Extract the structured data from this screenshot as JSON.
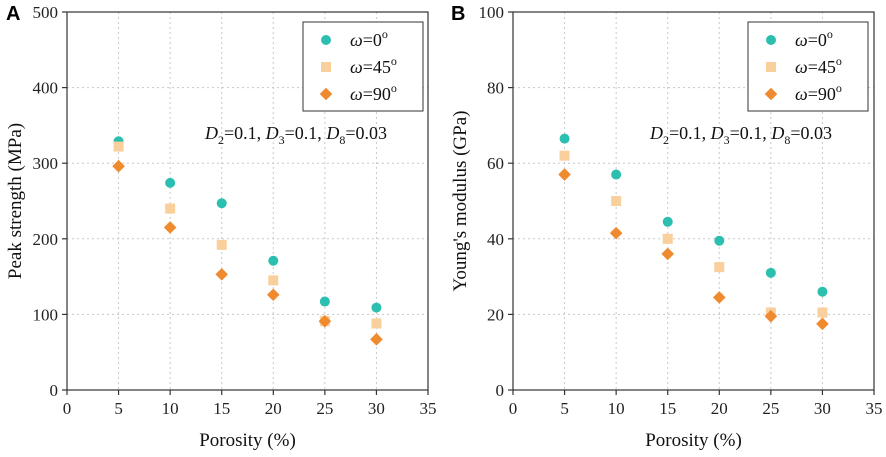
{
  "chart_data": [
    {
      "panel": "A",
      "type": "scatter",
      "xlabel": "Porosity (%)",
      "ylabel": "Peak strength (MPa)",
      "xlim": [
        0,
        35
      ],
      "ylim": [
        0,
        500
      ],
      "xticks": [
        0,
        5,
        10,
        15,
        20,
        25,
        30,
        35
      ],
      "yticks": [
        0,
        100,
        200,
        300,
        400,
        500
      ],
      "grid": true,
      "legend_position": "top-right",
      "annotation": {
        "parts": [
          "D",
          "2",
          "=0.1, ",
          "D",
          "3",
          "=0.1, ",
          "D",
          "8",
          "=0.03"
        ]
      },
      "x": [
        5,
        10,
        15,
        20,
        25,
        30
      ],
      "series": [
        {
          "name": "ω=0o",
          "symbol": "ω",
          "angle": "=0",
          "sup": "o",
          "marker": "circle",
          "color": "#2bbfb0",
          "values": [
            329,
            274,
            247,
            171,
            117,
            109
          ]
        },
        {
          "name": "ω=45o",
          "symbol": "ω",
          "angle": "=45",
          "sup": "o",
          "marker": "square",
          "color": "#f9cf9b",
          "values": [
            322,
            240,
            192,
            145,
            91,
            88
          ]
        },
        {
          "name": "ω=90o",
          "symbol": "ω",
          "angle": "=90",
          "sup": "o",
          "marker": "diamond",
          "color": "#f08a2e",
          "values": [
            296,
            215,
            153,
            126,
            91,
            67
          ]
        }
      ]
    },
    {
      "panel": "B",
      "type": "scatter",
      "xlabel": "Porosity (%)",
      "ylabel": "Young's modulus (GPa)",
      "xlim": [
        0,
        35
      ],
      "ylim": [
        0,
        100
      ],
      "xticks": [
        0,
        5,
        10,
        15,
        20,
        25,
        30,
        35
      ],
      "yticks": [
        0,
        20,
        40,
        60,
        80,
        100
      ],
      "grid": true,
      "legend_position": "top-right",
      "annotation": {
        "parts": [
          "D",
          "2",
          "=0.1, ",
          "D",
          "3",
          "=0.1, ",
          "D",
          "8",
          "=0.03"
        ]
      },
      "x": [
        5,
        10,
        15,
        20,
        25,
        30
      ],
      "series": [
        {
          "name": "ω=0o",
          "symbol": "ω",
          "angle": "=0",
          "sup": "o",
          "marker": "circle",
          "color": "#2bbfb0",
          "values": [
            66.5,
            57,
            44.5,
            39.5,
            31,
            26
          ]
        },
        {
          "name": "ω=45o",
          "symbol": "ω",
          "angle": "=45",
          "sup": "o",
          "marker": "square",
          "color": "#f9cf9b",
          "values": [
            62,
            50,
            40,
            32.5,
            20.5,
            20.5
          ]
        },
        {
          "name": "ω=90o",
          "symbol": "ω",
          "angle": "=90",
          "sup": "o",
          "marker": "diamond",
          "color": "#f08a2e",
          "values": [
            57,
            41.5,
            36,
            24.5,
            19.5,
            17.5
          ]
        }
      ]
    }
  ]
}
